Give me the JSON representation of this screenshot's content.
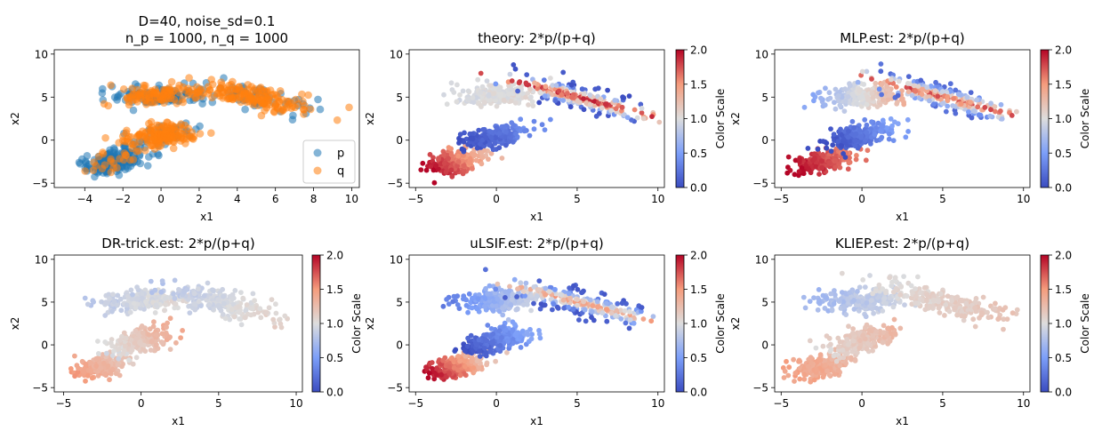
{
  "figure": {
    "rows": 2,
    "cols": 3
  },
  "colors": {
    "p": "#1f77b4",
    "q": "#ff7f0e",
    "axis": "#000000",
    "background": "#ffffff"
  },
  "colorbar": {
    "label": "Color Scale",
    "ticks": [
      "0.0",
      "0.5",
      "1.0",
      "1.5",
      "2.0"
    ],
    "colormap": "coolwarm"
  },
  "chart_data": [
    {
      "id": "p1",
      "type": "scatter",
      "title": [
        "D=40, noise_sd=0.1",
        "n_p = 1000, n_q = 1000"
      ],
      "xlabel": "x1",
      "ylabel": "x2",
      "xlim": [
        -5.6,
        10.4
      ],
      "ylim": [
        -5.5,
        10.5
      ],
      "xticks": [
        -4,
        -2,
        0,
        2,
        4,
        6,
        8,
        10
      ],
      "yticks": [
        -5,
        0,
        5,
        10
      ],
      "legend": {
        "position": "lower-right",
        "entries": [
          {
            "label": "p",
            "color": "#1f77b4"
          },
          {
            "label": "q",
            "color": "#ff7f0e"
          }
        ]
      },
      "clusters": [
        {
          "center": [
            -2.5,
            -2.5
          ],
          "spread": [
            0.9,
            0.55
          ],
          "angle": 0.55,
          "p_share": 0.9
        },
        {
          "center": [
            0.0,
            0.5
          ],
          "spread": [
            1.1,
            0.6
          ],
          "angle": 0.55,
          "p_share": 0.25
        },
        {
          "center": [
            0.0,
            5.2
          ],
          "spread": [
            1.3,
            0.55
          ],
          "angle": 0.05,
          "p_share": 0.45
        },
        {
          "center": [
            5.0,
            5.0
          ],
          "spread": [
            1.8,
            0.6
          ],
          "angle": -0.45,
          "p_share": 0.25
        }
      ]
    },
    {
      "id": "p2",
      "type": "scatter",
      "title": "theory: 2*p/(p+q)",
      "xlabel": "x1",
      "ylabel": "x2",
      "xlim": [
        -5.4,
        10.4
      ],
      "ylim": [
        -5.5,
        10.5
      ],
      "xticks": [
        -5,
        0,
        5,
        10
      ],
      "yticks": [
        -5,
        0,
        5,
        10
      ],
      "clusters": [
        {
          "center": [
            -2.5,
            -2.5
          ],
          "spread": [
            0.9,
            0.55
          ],
          "angle": 0.55,
          "cmin": 1.3,
          "cmax": 2.0
        },
        {
          "center": [
            0.0,
            0.5
          ],
          "spread": [
            1.1,
            0.6
          ],
          "angle": 0.55,
          "cmin": 0.0,
          "cmax": 0.4
        },
        {
          "center": [
            0.0,
            5.2
          ],
          "spread": [
            1.3,
            0.6
          ],
          "angle": 0.05,
          "cmin": 0.95,
          "cmax": 1.05
        },
        {
          "center": [
            5.0,
            5.0
          ],
          "spread": [
            2.3,
            0.65
          ],
          "angle": -0.45,
          "cmin": 0.05,
          "cmax": 1.95
        }
      ]
    },
    {
      "id": "p3",
      "type": "scatter",
      "title": "MLP.est: 2*p/(p+q)",
      "xlabel": "x1",
      "ylabel": "x2",
      "xlim": [
        -5.4,
        10.4
      ],
      "ylim": [
        -5.5,
        10.5
      ],
      "xticks": [
        -5,
        0,
        5,
        10
      ],
      "yticks": [
        -5,
        0,
        5,
        10
      ],
      "clusters": [
        {
          "center": [
            -2.5,
            -2.5
          ],
          "spread": [
            0.9,
            0.55
          ],
          "angle": 0.55,
          "cmin": 1.6,
          "cmax": 2.0
        },
        {
          "center": [
            0.0,
            0.5
          ],
          "spread": [
            1.1,
            0.6
          ],
          "angle": 0.55,
          "cmin": 0.0,
          "cmax": 0.5
        },
        {
          "center": [
            0.0,
            5.2
          ],
          "spread": [
            1.3,
            0.6
          ],
          "angle": 0.05,
          "cmin": 0.6,
          "cmax": 1.4
        },
        {
          "center": [
            5.0,
            5.0
          ],
          "spread": [
            2.3,
            0.65
          ],
          "angle": -0.45,
          "cmin": 0.2,
          "cmax": 1.8
        }
      ]
    },
    {
      "id": "p4",
      "type": "scatter",
      "title": "DR-trick.est: 2*p/(p+q)",
      "xlabel": "x1",
      "ylabel": "x2",
      "xlim": [
        -5.6,
        10.4
      ],
      "ylim": [
        -5.5,
        10.5
      ],
      "xticks": [
        -5,
        0,
        5,
        10
      ],
      "yticks": [
        -5,
        0,
        5,
        10
      ],
      "clusters": [
        {
          "center": [
            -2.5,
            -2.5
          ],
          "spread": [
            0.9,
            0.55
          ],
          "angle": 0.55,
          "cmin": 1.15,
          "cmax": 1.5
        },
        {
          "center": [
            0.0,
            0.5
          ],
          "spread": [
            1.1,
            0.6
          ],
          "angle": 0.55,
          "cmin": 0.95,
          "cmax": 1.4
        },
        {
          "center": [
            0.0,
            5.2
          ],
          "spread": [
            1.3,
            0.6
          ],
          "angle": 0.05,
          "cmin": 0.85,
          "cmax": 1.05
        },
        {
          "center": [
            5.0,
            5.0
          ],
          "spread": [
            2.0,
            0.65
          ],
          "angle": -0.45,
          "cmin": 0.8,
          "cmax": 1.1
        }
      ]
    },
    {
      "id": "p5",
      "type": "scatter",
      "title": "uLSIF.est: 2*p/(p+q)",
      "xlabel": "x1",
      "ylabel": "x2",
      "xlim": [
        -5.4,
        10.4
      ],
      "ylim": [
        -5.5,
        10.5
      ],
      "xticks": [
        -5,
        0,
        5,
        10
      ],
      "yticks": [
        -5,
        0,
        5,
        10
      ],
      "clusters": [
        {
          "center": [
            -2.5,
            -2.5
          ],
          "spread": [
            0.9,
            0.55
          ],
          "angle": 0.55,
          "cmin": 1.2,
          "cmax": 2.0
        },
        {
          "center": [
            0.0,
            0.5
          ],
          "spread": [
            1.1,
            0.6
          ],
          "angle": 0.55,
          "cmin": 0.0,
          "cmax": 0.6
        },
        {
          "center": [
            0.0,
            5.2
          ],
          "spread": [
            1.3,
            0.6
          ],
          "angle": 0.05,
          "cmin": 0.3,
          "cmax": 1.0
        },
        {
          "center": [
            5.0,
            5.0
          ],
          "spread": [
            2.3,
            0.65
          ],
          "angle": -0.45,
          "cmin": 0.1,
          "cmax": 1.5
        }
      ]
    },
    {
      "id": "p6",
      "type": "scatter",
      "title": "KLIEP.est: 2*p/(p+q)",
      "xlabel": "x1",
      "ylabel": "x2",
      "xlim": [
        -5.4,
        10.4
      ],
      "ylim": [
        -5.5,
        10.5
      ],
      "xticks": [
        -5,
        0,
        5,
        10
      ],
      "yticks": [
        -5,
        0,
        5,
        10
      ],
      "clusters": [
        {
          "center": [
            -2.5,
            -2.5
          ],
          "spread": [
            0.9,
            0.55
          ],
          "angle": 0.55,
          "cmin": 1.3,
          "cmax": 1.45
        },
        {
          "center": [
            0.0,
            0.5
          ],
          "spread": [
            1.1,
            0.6
          ],
          "angle": 0.55,
          "cmin": 1.05,
          "cmax": 1.3
        },
        {
          "center": [
            0.0,
            5.2
          ],
          "spread": [
            1.3,
            0.6
          ],
          "angle": 0.05,
          "cmin": 0.7,
          "cmax": 0.95
        },
        {
          "center": [
            5.0,
            5.0
          ],
          "spread": [
            2.3,
            0.65
          ],
          "angle": -0.45,
          "cmin": 1.0,
          "cmax": 1.2
        }
      ]
    }
  ]
}
